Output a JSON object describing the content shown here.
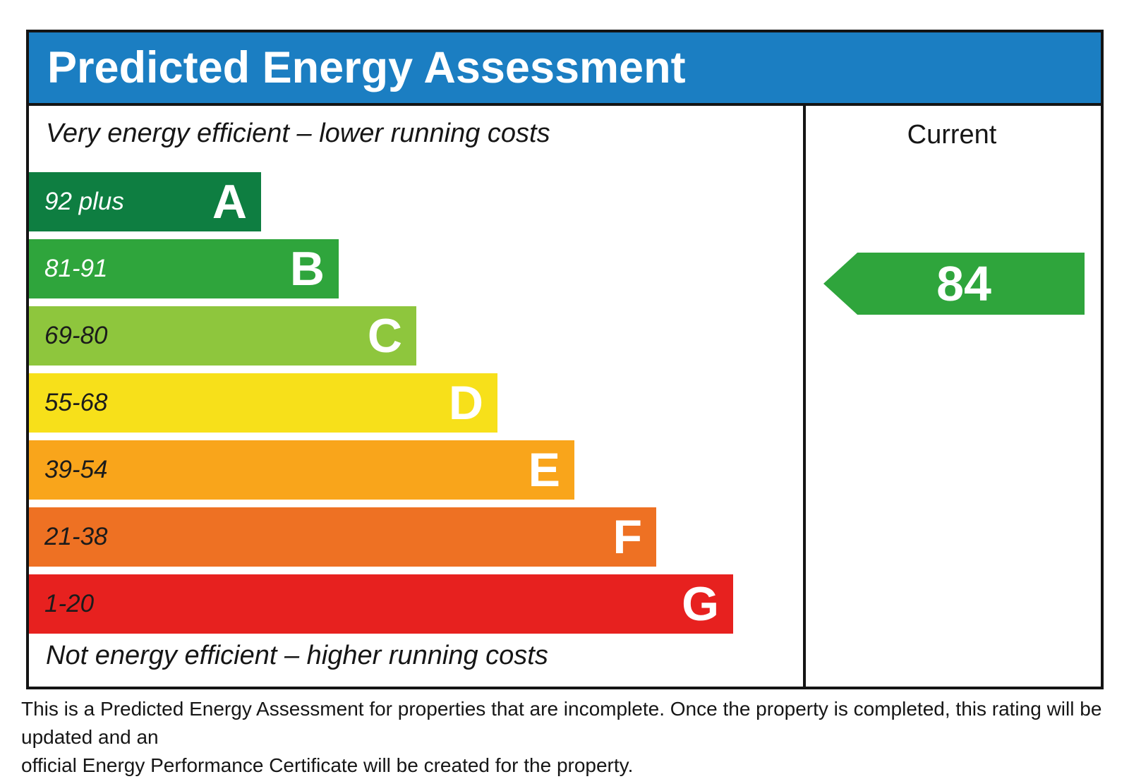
{
  "header": {
    "title": "Predicted Energy Assessment",
    "bg_color": "#1b7ec2"
  },
  "panel": {
    "top_note": "Very energy efficient – lower running costs",
    "bottom_note": "Not energy efficient – higher running costs"
  },
  "current_column": {
    "label": "Current",
    "value": "84",
    "arrow_color": "#2fa53c"
  },
  "footer": {
    "lines": [
      "This is a Predicted Energy Assessment for properties that are incomplete. Once the property is completed, this rating will be updated and an",
      "official Energy Performance Certificate will be created for the property."
    ]
  },
  "chart_data": {
    "type": "bar",
    "title": "Predicted Energy Assessment",
    "orientation": "horizontal",
    "current_rating": 84,
    "current_band": "B",
    "bands": [
      {
        "letter": "A",
        "range": "92 plus",
        "color": "#0e7e41",
        "label_color": "#ffffff",
        "width_pct": 30
      },
      {
        "letter": "B",
        "range": "81-91",
        "color": "#2fa53c",
        "label_color": "#ffffff",
        "width_pct": 40
      },
      {
        "letter": "C",
        "range": "69-80",
        "color": "#8ec63d",
        "label_color": "#1b1b1b",
        "width_pct": 50
      },
      {
        "letter": "D",
        "range": "55-68",
        "color": "#f7e01a",
        "label_color": "#1b1b1b",
        "width_pct": 60.5
      },
      {
        "letter": "E",
        "range": "39-54",
        "color": "#f9a51b",
        "label_color": "#1b1b1b",
        "width_pct": 70.5
      },
      {
        "letter": "F",
        "range": "21-38",
        "color": "#ee7123",
        "label_color": "#1b1b1b",
        "width_pct": 81
      },
      {
        "letter": "G",
        "range": "1-20",
        "color": "#e7211f",
        "label_color": "#1b1b1b",
        "width_pct": 91
      }
    ]
  }
}
